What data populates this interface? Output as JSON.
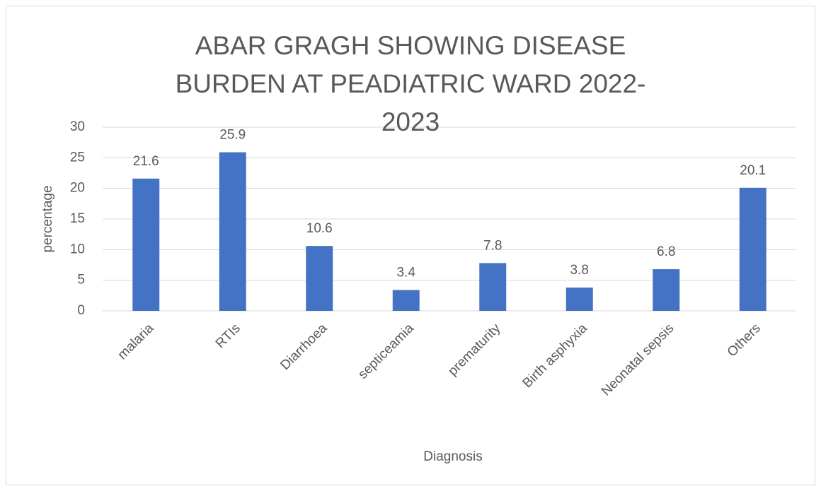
{
  "chart_data": {
    "type": "bar",
    "title": "ABAR GRAGH SHOWING DISEASE BURDEN AT PEADIATRIC WARD 2022-2023",
    "x_label": "Diagnosis",
    "y_label": "percentage",
    "categories": [
      "malaria",
      "RTIs",
      "Diarrhoea",
      "septiceamia",
      "prematurity",
      "Birth asphyxia",
      "Neonatal sepsis",
      "Others"
    ],
    "values": [
      21.6,
      25.9,
      10.6,
      3.4,
      7.8,
      3.8,
      6.8,
      20.1
    ],
    "color": "#4472c4",
    "ylim": [
      0,
      30
    ],
    "yticks": [
      0,
      5,
      10,
      15,
      20,
      25,
      30
    ],
    "grid": true
  }
}
